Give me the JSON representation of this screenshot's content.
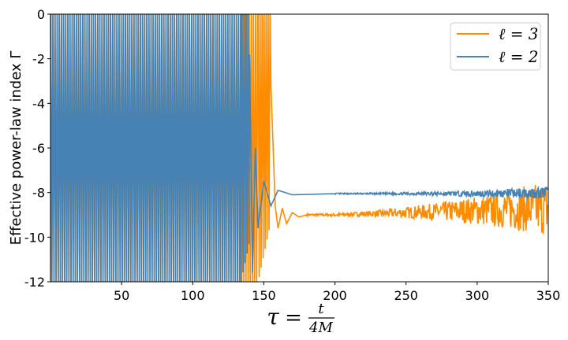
{
  "chart_data": {
    "type": "line",
    "title": "",
    "xlabel": {
      "lhs": "τ",
      "eq": "=",
      "num": "t",
      "den": "4M"
    },
    "ylabel": "Effective power-law index Γ",
    "xlim": [
      0,
      350
    ],
    "ylim": [
      -12,
      0
    ],
    "x_ticks": [
      50,
      100,
      150,
      200,
      250,
      300,
      350
    ],
    "y_ticks": [
      0,
      -2,
      -4,
      -6,
      -8,
      -10,
      -12
    ],
    "grid": false,
    "legend_position": "top-right",
    "series": [
      {
        "name": "ℓ = 3",
        "color": "#ff8c00",
        "description_points": {
          "tau": [
            155,
            158,
            160,
            163,
            166,
            170,
            175,
            180,
            200,
            250,
            300,
            350
          ],
          "gamma": [
            -3.2,
            -8.6,
            -9.6,
            -8.7,
            -9.4,
            -8.9,
            -9.1,
            -9.0,
            -9.0,
            -8.9,
            -8.8,
            -8.7
          ]
        },
        "late_time_value": -9.0,
        "oscillation_end": 158
      },
      {
        "name": "ℓ = 2",
        "color": "#4682b4",
        "description_points": {
          "tau": [
            140,
            142,
            144,
            146,
            150,
            155,
            160,
            170,
            200,
            250,
            300,
            350
          ],
          "gamma": [
            -1.8,
            -11.6,
            -6.0,
            -9.6,
            -7.5,
            -8.6,
            -7.9,
            -8.1,
            -8.05,
            -8.05,
            -8.05,
            -8.0
          ]
        },
        "late_time_value": -8.05,
        "oscillation_end": 146
      }
    ]
  }
}
